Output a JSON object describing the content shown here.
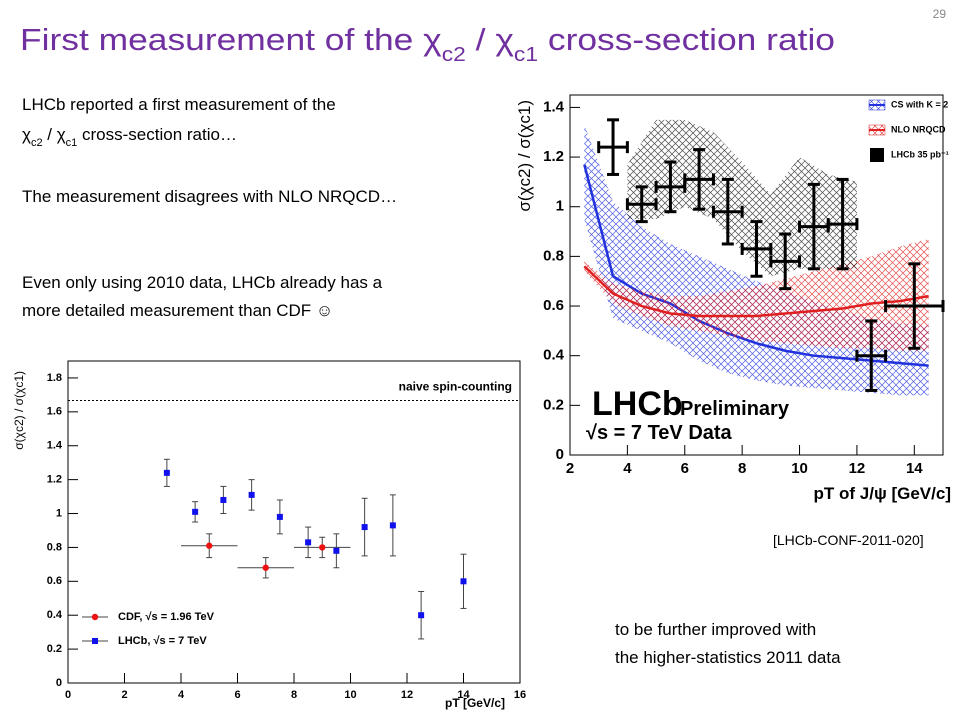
{
  "slide": {
    "title": [
      "First measurement of the ",
      "χ",
      "c2",
      " / ",
      "χ",
      "c1",
      " cross-section ratio"
    ],
    "page": "29",
    "bullets": [
      [
        "LHCb reported a first measurement of the"
      ],
      [
        "χ",
        "c2",
        " / ",
        "χ",
        "c1",
        " cross-section ratio…"
      ],
      [
        "The measurement disagrees with NLO NRQCD…"
      ],
      [
        "Even only using 2010 data, LHCb already has a"
      ],
      [
        "more detailed measurement than CDF ☺"
      ]
    ],
    "citation": "[LHCb-CONF-2011-020]",
    "note": [
      "to be further improved with",
      "the higher-statistics 2011 data"
    ]
  },
  "chart_data": [
    {
      "type": "errorbar",
      "ylabel": "σ(χc2) / σ(χc1)",
      "xlabel": "pT of J/ψ [GeV/c]",
      "xlim": [
        2,
        15
      ],
      "ylim": [
        0,
        1.45
      ],
      "xticks": [
        2,
        4,
        6,
        8,
        10,
        12,
        14
      ],
      "yticks": [
        0,
        0.2,
        0.4,
        0.6,
        0.8,
        1,
        1.2,
        1.4
      ],
      "legend": "upper right",
      "annotations": [
        "LHCb",
        "Preliminary",
        "√s = 7 TeV Data"
      ],
      "series": [
        {
          "name": "CS with K = 2",
          "color": "#2233dd",
          "x": [
            2.5,
            3.5,
            4.5,
            5.5,
            6.5,
            7.5,
            8.5,
            9.5,
            10.5,
            11.5,
            12.5,
            13.5,
            14.5
          ],
          "values": [
            1.17,
            0.72,
            0.65,
            0.61,
            0.54,
            0.49,
            0.45,
            0.42,
            0.4,
            0.39,
            0.38,
            0.37,
            0.36
          ],
          "upper": [
            1.33,
            1.02,
            0.92,
            0.85,
            0.8,
            0.75,
            0.7,
            0.66,
            0.62,
            0.58,
            0.55,
            0.53,
            0.52
          ],
          "lower": [
            0.95,
            0.55,
            0.5,
            0.45,
            0.38,
            0.33,
            0.3,
            0.28,
            0.27,
            0.26,
            0.25,
            0.24,
            0.24
          ]
        },
        {
          "name": "NLO NRQCD",
          "color": "#e02020",
          "x": [
            2.5,
            3.5,
            4.5,
            5.5,
            6.5,
            7.5,
            8.5,
            9.5,
            10.5,
            11.5,
            12.5,
            13.5,
            14.5
          ],
          "values": [
            0.76,
            0.65,
            0.6,
            0.57,
            0.56,
            0.56,
            0.56,
            0.57,
            0.58,
            0.59,
            0.61,
            0.62,
            0.64
          ],
          "upper": [
            0.78,
            0.69,
            0.66,
            0.64,
            0.64,
            0.66,
            0.68,
            0.71,
            0.74,
            0.77,
            0.8,
            0.84,
            0.87
          ],
          "lower": [
            0.74,
            0.61,
            0.56,
            0.52,
            0.5,
            0.48,
            0.46,
            0.45,
            0.44,
            0.43,
            0.43,
            0.42,
            0.42
          ]
        },
        {
          "color": "#000000",
          "x": [
            4,
            5,
            6,
            7,
            8,
            9,
            10,
            11,
            12
          ],
          "upper": [
            1.17,
            1.35,
            1.35,
            1.3,
            1.18,
            1.05,
            1.2,
            1.13,
            1.1
          ],
          "lower": [
            0.95,
            0.95,
            1.0,
            0.95,
            0.82,
            0.72,
            0.75,
            0.75,
            0.75
          ]
        },
        {
          "name": "LHCb 35 pb⁻¹",
          "color": "#000000",
          "x": [
            3.5,
            4.5,
            5.5,
            6.5,
            7.5,
            8.5,
            9.5,
            10.5,
            11.5,
            12.5,
            14
          ],
          "xerrors": [
            0.5,
            0.5,
            0.5,
            0.5,
            0.5,
            0.5,
            0.5,
            0.5,
            0.5,
            0.5,
            1
          ],
          "values": [
            1.24,
            1.01,
            1.08,
            1.11,
            0.98,
            0.83,
            0.78,
            0.92,
            0.93,
            0.4,
            0.6
          ],
          "errors": [
            0.11,
            0.07,
            0.1,
            0.12,
            0.13,
            0.11,
            0.11,
            0.17,
            0.18,
            0.14,
            0.17
          ]
        }
      ]
    },
    {
      "type": "errorbar",
      "ylabel": "σ(χc2) / σ(χc1)",
      "xlabel": "pT [GeV/c]",
      "xlim": [
        0,
        16
      ],
      "ylim": [
        0,
        1.9
      ],
      "xticks": [
        0,
        2,
        4,
        6,
        8,
        10,
        12,
        14,
        16
      ],
      "yticks": [
        0,
        0.2,
        0.4,
        0.6,
        0.8,
        1,
        1.2,
        1.4,
        1.6,
        1.8
      ],
      "legend": "lower left",
      "reference_line": {
        "label": "naive spin-counting",
        "value": 1.667
      },
      "series": [
        {
          "name": "CDF, √s = 1.96 TeV",
          "color": "#ee1111",
          "marker": "circle",
          "x": [
            5,
            7,
            9
          ],
          "xerrors": [
            1,
            1,
            1
          ],
          "values": [
            0.81,
            0.68,
            0.8
          ],
          "errors": [
            0.07,
            0.06,
            0.06
          ]
        },
        {
          "name": "LHCb, √s = 7 TeV",
          "color": "#1111ee",
          "marker": "square",
          "x": [
            3.5,
            4.5,
            5.5,
            6.5,
            7.5,
            8.5,
            9.5,
            10.5,
            11.5,
            12.5,
            14
          ],
          "values": [
            1.24,
            1.01,
            1.08,
            1.11,
            0.98,
            0.83,
            0.78,
            0.92,
            0.93,
            0.4,
            0.6
          ],
          "errors": [
            0.08,
            0.06,
            0.08,
            0.09,
            0.1,
            0.09,
            0.1,
            0.17,
            0.18,
            0.14,
            0.16
          ]
        }
      ]
    }
  ]
}
